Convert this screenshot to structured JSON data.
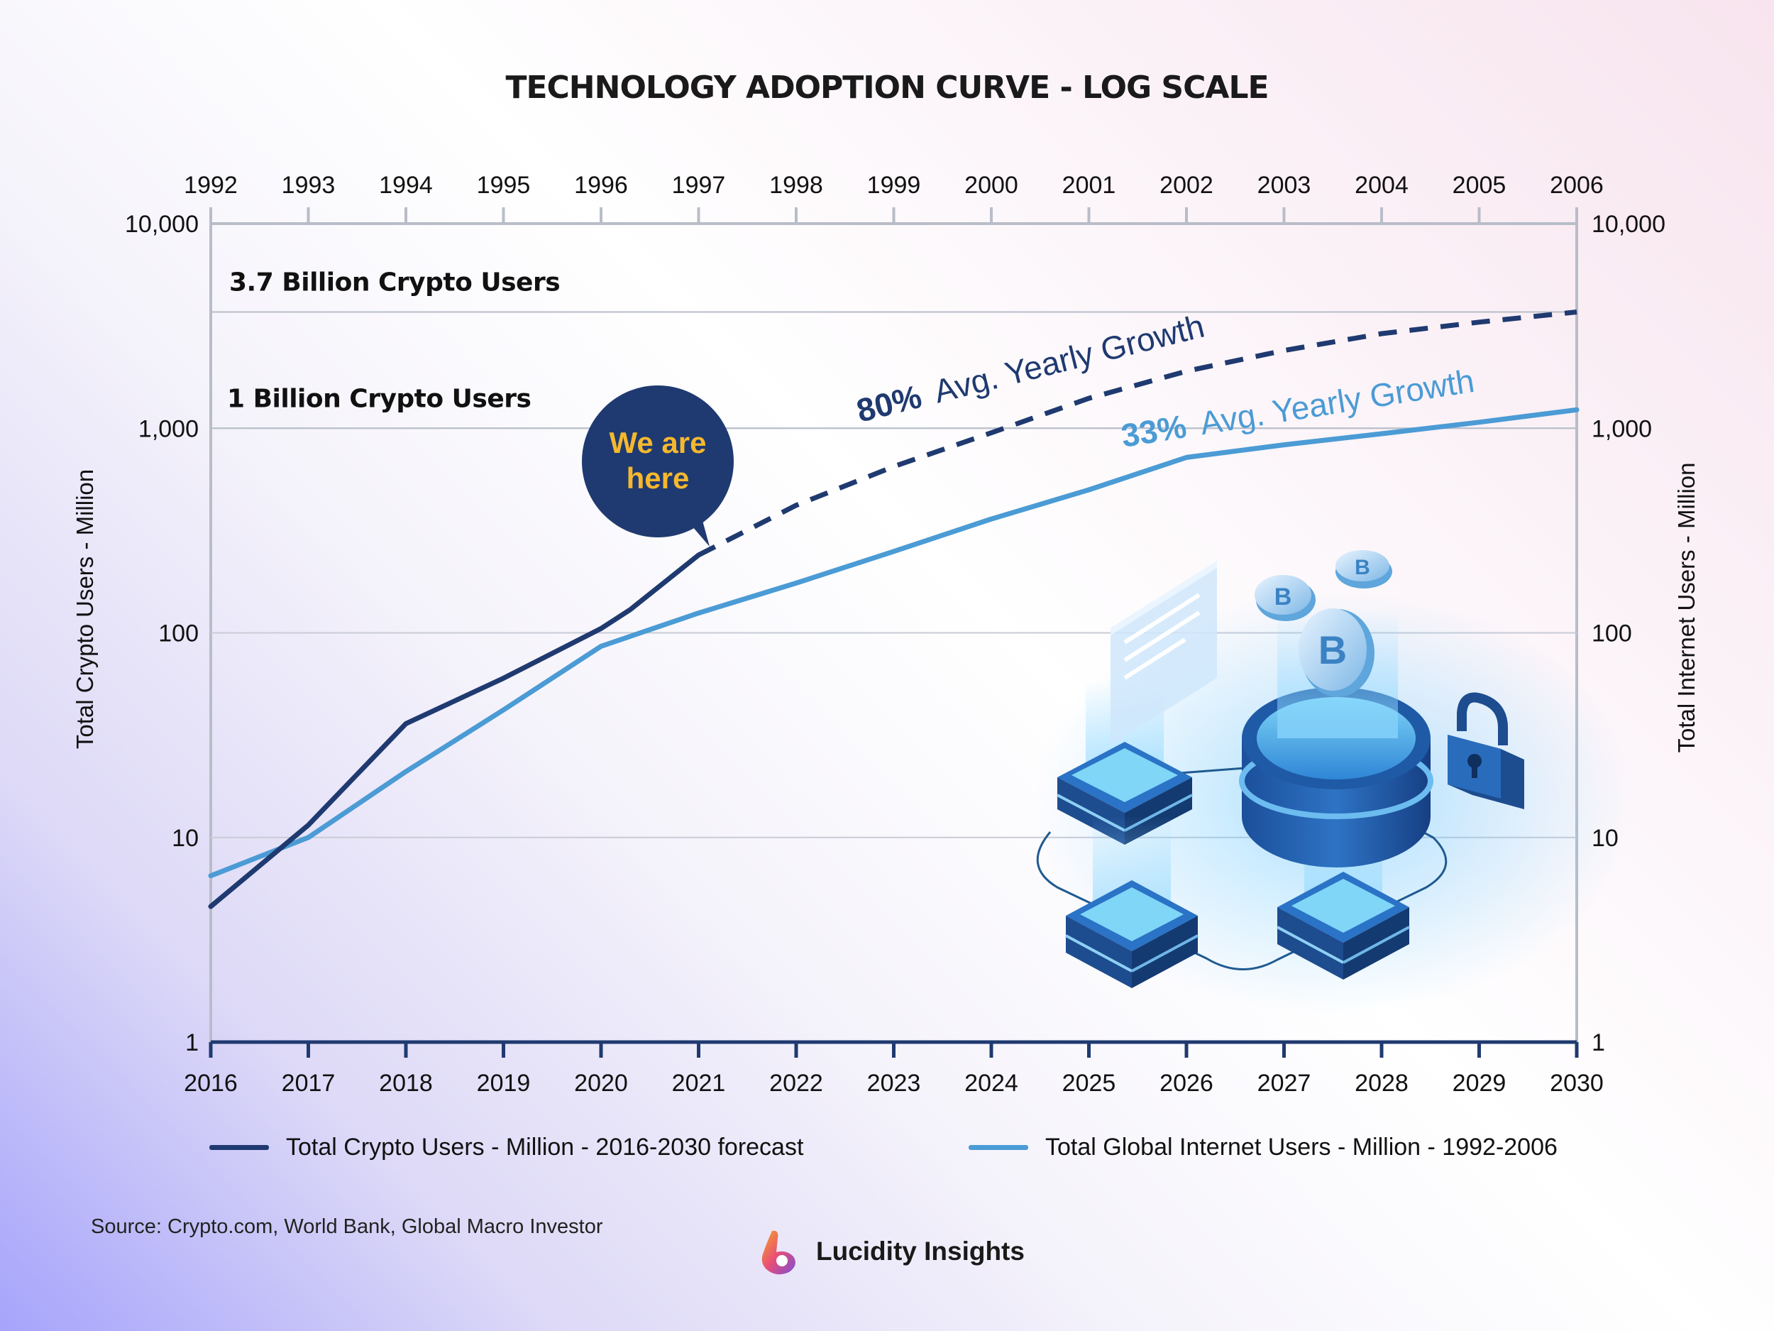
{
  "title": "TECHNOLOGY ADOPTION CURVE - LOG SCALE",
  "chart_data": {
    "type": "line",
    "scale": "log",
    "title": "TECHNOLOGY ADOPTION CURVE - LOG SCALE",
    "x_bottom": [
      "2016",
      "2017",
      "2018",
      "2019",
      "2020",
      "2021",
      "2022",
      "2023",
      "2024",
      "2025",
      "2026",
      "2027",
      "2028",
      "2029",
      "2030"
    ],
    "x_top": [
      "1992",
      "1993",
      "1994",
      "1995",
      "1996",
      "1997",
      "1998",
      "1999",
      "2000",
      "2001",
      "2002",
      "2003",
      "2004",
      "2005",
      "2006"
    ],
    "y_ticks": [
      "1",
      "10",
      "100",
      "1,000",
      "10,000"
    ],
    "y_tick_values": [
      1,
      10,
      100,
      1000,
      10000
    ],
    "ylim": [
      1,
      10000
    ],
    "ylabel_left": "Total Crypto Users - Million",
    "ylabel_right": "Total Internet Users - Million",
    "series": [
      {
        "name": "Total Crypto Users - Million - 2016-2030 forecast",
        "color": "#1f3a70",
        "actual": [
          [
            0,
            4.6
          ],
          [
            1,
            11.5
          ],
          [
            2,
            36
          ],
          [
            3,
            60
          ],
          [
            4,
            105
          ],
          [
            4.3,
            130
          ],
          [
            5,
            240
          ]
        ],
        "forecast": [
          [
            5,
            240
          ],
          [
            6,
            420
          ],
          [
            7,
            650
          ],
          [
            8,
            950
          ],
          [
            9,
            1400
          ],
          [
            10,
            1900
          ],
          [
            11,
            2400
          ],
          [
            12,
            2900
          ],
          [
            13,
            3300
          ],
          [
            14,
            3700
          ]
        ]
      },
      {
        "name": "Total Global Internet Users - Million - 1992-2006",
        "color": "#4b9bd5",
        "actual": [
          [
            0,
            6.5
          ],
          [
            1,
            10
          ],
          [
            2,
            21
          ],
          [
            3,
            42
          ],
          [
            4,
            86
          ],
          [
            5,
            125
          ],
          [
            6,
            175
          ],
          [
            7,
            250
          ],
          [
            8,
            360
          ],
          [
            9,
            500
          ],
          [
            10,
            720
          ],
          [
            11,
            830
          ],
          [
            12,
            940
          ],
          [
            13,
            1070
          ],
          [
            14,
            1230
          ]
        ]
      }
    ],
    "reference_lines": [
      {
        "value": 3700,
        "label": "3.7 Billion Crypto Users"
      },
      {
        "value": 1000,
        "label": "1 Billion Crypto Users"
      }
    ],
    "annotations": [
      {
        "pct": "80%",
        "text": "Avg. Yearly Growth",
        "color": "#1f3a70"
      },
      {
        "pct": "33%",
        "text": "Avg. Yearly Growth",
        "color": "#4b9bd5"
      },
      {
        "text_line1": "We are",
        "text_line2": "here",
        "bubble_color": "#1f3a70",
        "text_color": "#f5b82e"
      }
    ]
  },
  "legend": [
    {
      "label": "Total Crypto Users - Million - 2016-2030 forecast",
      "color": "#1f3a70"
    },
    {
      "label": "Total Global Internet Users - Million - 1992-2006",
      "color": "#4b9bd5"
    }
  ],
  "source": "Source: Crypto.com, World Bank, Global Macro Investor",
  "brand": "Lucidity Insights"
}
